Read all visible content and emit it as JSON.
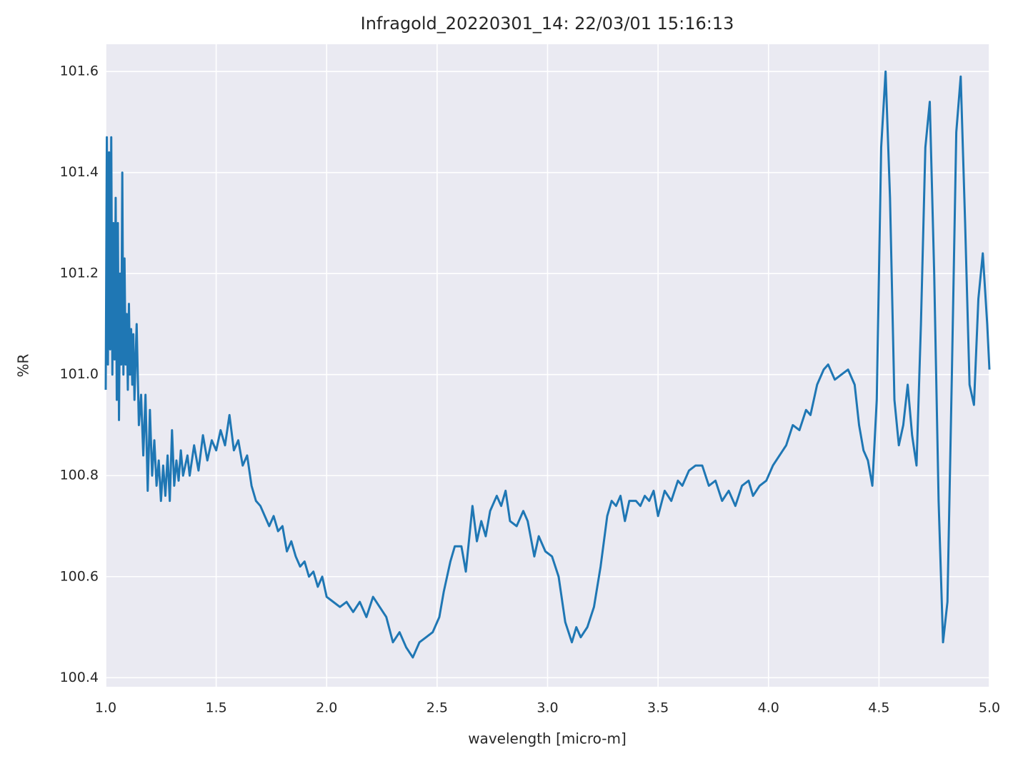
{
  "chart_data": {
    "type": "line",
    "title": "Infragold_20220301_14:  22/03/01 15:16:13",
    "xlabel": "wavelength [micro-m]",
    "ylabel": "%R",
    "xlim": [
      1.0,
      5.0
    ],
    "ylim": [
      100.382,
      101.654
    ],
    "xticks": [
      {
        "value": 1.0,
        "label": "1.0"
      },
      1.5,
      {
        "value": 2.0,
        "label": "2.0"
      },
      2.5,
      {
        "value": 3.0,
        "label": "3.0"
      },
      3.5,
      {
        "value": 4.0,
        "label": "4.0"
      },
      4.5,
      {
        "value": 5.0,
        "label": "5.0"
      }
    ],
    "yticks": [
      100.4,
      100.6,
      100.8,
      {
        "value": 101.0,
        "label": "101.0"
      },
      101.2,
      101.4,
      101.6
    ],
    "grid": true,
    "background": "#eaeaf2",
    "series": [
      {
        "color": "#1f77b4",
        "x": [
          1.0,
          1.005,
          1.01,
          1.015,
          1.02,
          1.025,
          1.03,
          1.035,
          1.04,
          1.045,
          1.05,
          1.055,
          1.06,
          1.065,
          1.07,
          1.075,
          1.08,
          1.085,
          1.09,
          1.095,
          1.1,
          1.105,
          1.11,
          1.115,
          1.12,
          1.125,
          1.13,
          1.14,
          1.15,
          1.16,
          1.17,
          1.18,
          1.19,
          1.2,
          1.21,
          1.22,
          1.23,
          1.24,
          1.25,
          1.26,
          1.27,
          1.28,
          1.29,
          1.3,
          1.31,
          1.32,
          1.33,
          1.34,
          1.35,
          1.37,
          1.38,
          1.4,
          1.42,
          1.44,
          1.46,
          1.48,
          1.5,
          1.52,
          1.54,
          1.56,
          1.58,
          1.6,
          1.62,
          1.64,
          1.66,
          1.68,
          1.7,
          1.72,
          1.74,
          1.76,
          1.78,
          1.8,
          1.82,
          1.84,
          1.86,
          1.88,
          1.9,
          1.92,
          1.94,
          1.96,
          1.98,
          2.0,
          2.03,
          2.06,
          2.09,
          2.12,
          2.15,
          2.18,
          2.21,
          2.24,
          2.27,
          2.3,
          2.33,
          2.36,
          2.39,
          2.42,
          2.45,
          2.48,
          2.51,
          2.53,
          2.56,
          2.58,
          2.61,
          2.63,
          2.66,
          2.68,
          2.7,
          2.72,
          2.74,
          2.77,
          2.79,
          2.81,
          2.83,
          2.86,
          2.89,
          2.91,
          2.94,
          2.96,
          2.99,
          3.02,
          3.05,
          3.08,
          3.11,
          3.13,
          3.15,
          3.18,
          3.21,
          3.24,
          3.27,
          3.29,
          3.31,
          3.33,
          3.35,
          3.37,
          3.4,
          3.42,
          3.44,
          3.46,
          3.48,
          3.5,
          3.53,
          3.56,
          3.59,
          3.61,
          3.64,
          3.67,
          3.7,
          3.73,
          3.76,
          3.79,
          3.82,
          3.85,
          3.88,
          3.91,
          3.93,
          3.96,
          3.99,
          4.02,
          4.05,
          4.08,
          4.11,
          4.14,
          4.17,
          4.19,
          4.22,
          4.25,
          4.27,
          4.3,
          4.33,
          4.36,
          4.39,
          4.41,
          4.43,
          4.45,
          4.47,
          4.49,
          4.51,
          4.53,
          4.55,
          4.57,
          4.59,
          4.61,
          4.63,
          4.65,
          4.67,
          4.69,
          4.71,
          4.73,
          4.75,
          4.77,
          4.79,
          4.81,
          4.83,
          4.85,
          4.87,
          4.89,
          4.91,
          4.93,
          4.95,
          4.97,
          4.99,
          5.0
        ],
        "values": [
          100.97,
          101.47,
          101.02,
          101.44,
          101.05,
          101.47,
          101.0,
          101.3,
          101.03,
          101.35,
          100.95,
          101.3,
          100.91,
          101.2,
          101.02,
          101.4,
          101.0,
          101.23,
          101.02,
          101.12,
          100.97,
          101.14,
          101.0,
          101.09,
          100.98,
          101.08,
          100.95,
          101.1,
          100.9,
          100.96,
          100.84,
          100.96,
          100.77,
          100.93,
          100.8,
          100.87,
          100.78,
          100.83,
          100.75,
          100.82,
          100.76,
          100.84,
          100.75,
          100.89,
          100.78,
          100.83,
          100.79,
          100.85,
          100.8,
          100.84,
          100.8,
          100.86,
          100.81,
          100.88,
          100.83,
          100.87,
          100.85,
          100.89,
          100.86,
          100.92,
          100.85,
          100.87,
          100.82,
          100.84,
          100.78,
          100.75,
          100.74,
          100.72,
          100.7,
          100.72,
          100.69,
          100.7,
          100.65,
          100.67,
          100.64,
          100.62,
          100.63,
          100.6,
          100.61,
          100.58,
          100.6,
          100.56,
          100.55,
          100.54,
          100.55,
          100.53,
          100.55,
          100.52,
          100.56,
          100.54,
          100.52,
          100.47,
          100.49,
          100.46,
          100.44,
          100.47,
          100.48,
          100.49,
          100.52,
          100.57,
          100.63,
          100.66,
          100.66,
          100.61,
          100.74,
          100.67,
          100.71,
          100.68,
          100.73,
          100.76,
          100.74,
          100.77,
          100.71,
          100.7,
          100.73,
          100.71,
          100.64,
          100.68,
          100.65,
          100.64,
          100.6,
          100.51,
          100.47,
          100.5,
          100.48,
          100.5,
          100.54,
          100.62,
          100.72,
          100.75,
          100.74,
          100.76,
          100.71,
          100.75,
          100.75,
          100.74,
          100.76,
          100.75,
          100.77,
          100.72,
          100.77,
          100.75,
          100.79,
          100.78,
          100.81,
          100.82,
          100.82,
          100.78,
          100.79,
          100.75,
          100.77,
          100.74,
          100.78,
          100.79,
          100.76,
          100.78,
          100.79,
          100.82,
          100.84,
          100.86,
          100.9,
          100.89,
          100.93,
          100.92,
          100.98,
          101.01,
          101.02,
          100.99,
          101.0,
          101.01,
          100.98,
          100.9,
          100.85,
          100.83,
          100.78,
          100.95,
          101.45,
          101.6,
          101.35,
          100.95,
          100.86,
          100.9,
          100.98,
          100.88,
          100.82,
          101.1,
          101.45,
          101.54,
          101.2,
          100.75,
          100.47,
          100.55,
          101.0,
          101.48,
          101.59,
          101.3,
          100.98,
          100.94,
          101.15,
          101.24,
          101.1,
          101.01
        ]
      }
    ]
  }
}
